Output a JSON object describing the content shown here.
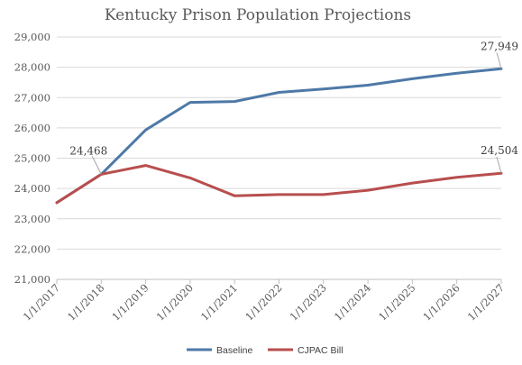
{
  "chart_data": {
    "type": "line",
    "title": "Kentucky Prison Population Projections",
    "xlabel": "",
    "ylabel": "",
    "categories": [
      "1/1/2017",
      "1/1/2018",
      "1/1/2019",
      "1/1/2020",
      "1/1/2021",
      "1/1/2022",
      "1/1/2023",
      "1/1/2024",
      "1/1/2025",
      "1/1/2026",
      "1/1/2027"
    ],
    "ylim": [
      21000,
      29000
    ],
    "yticks": [
      "21,000",
      "22,000",
      "23,000",
      "24,000",
      "25,000",
      "26,000",
      "27,000",
      "28,000",
      "29,000"
    ],
    "grid": true,
    "legend_position": "bottom",
    "series": [
      {
        "name": "Baseline",
        "color": "#4e79a7",
        "values": [
          23530,
          24468,
          25930,
          26840,
          26870,
          27170,
          27280,
          27410,
          27620,
          27800,
          27949
        ]
      },
      {
        "name": "CJPAC Bill",
        "color": "#b84e4e",
        "values": [
          23530,
          24468,
          24760,
          24350,
          23760,
          23800,
          23800,
          23940,
          24180,
          24370,
          24504
        ]
      }
    ],
    "annotations": [
      {
        "text": "24,468",
        "series": 0,
        "index": 1
      },
      {
        "text": "27,949",
        "series": 0,
        "index": 10
      },
      {
        "text": "24,504",
        "series": 1,
        "index": 10
      }
    ]
  }
}
